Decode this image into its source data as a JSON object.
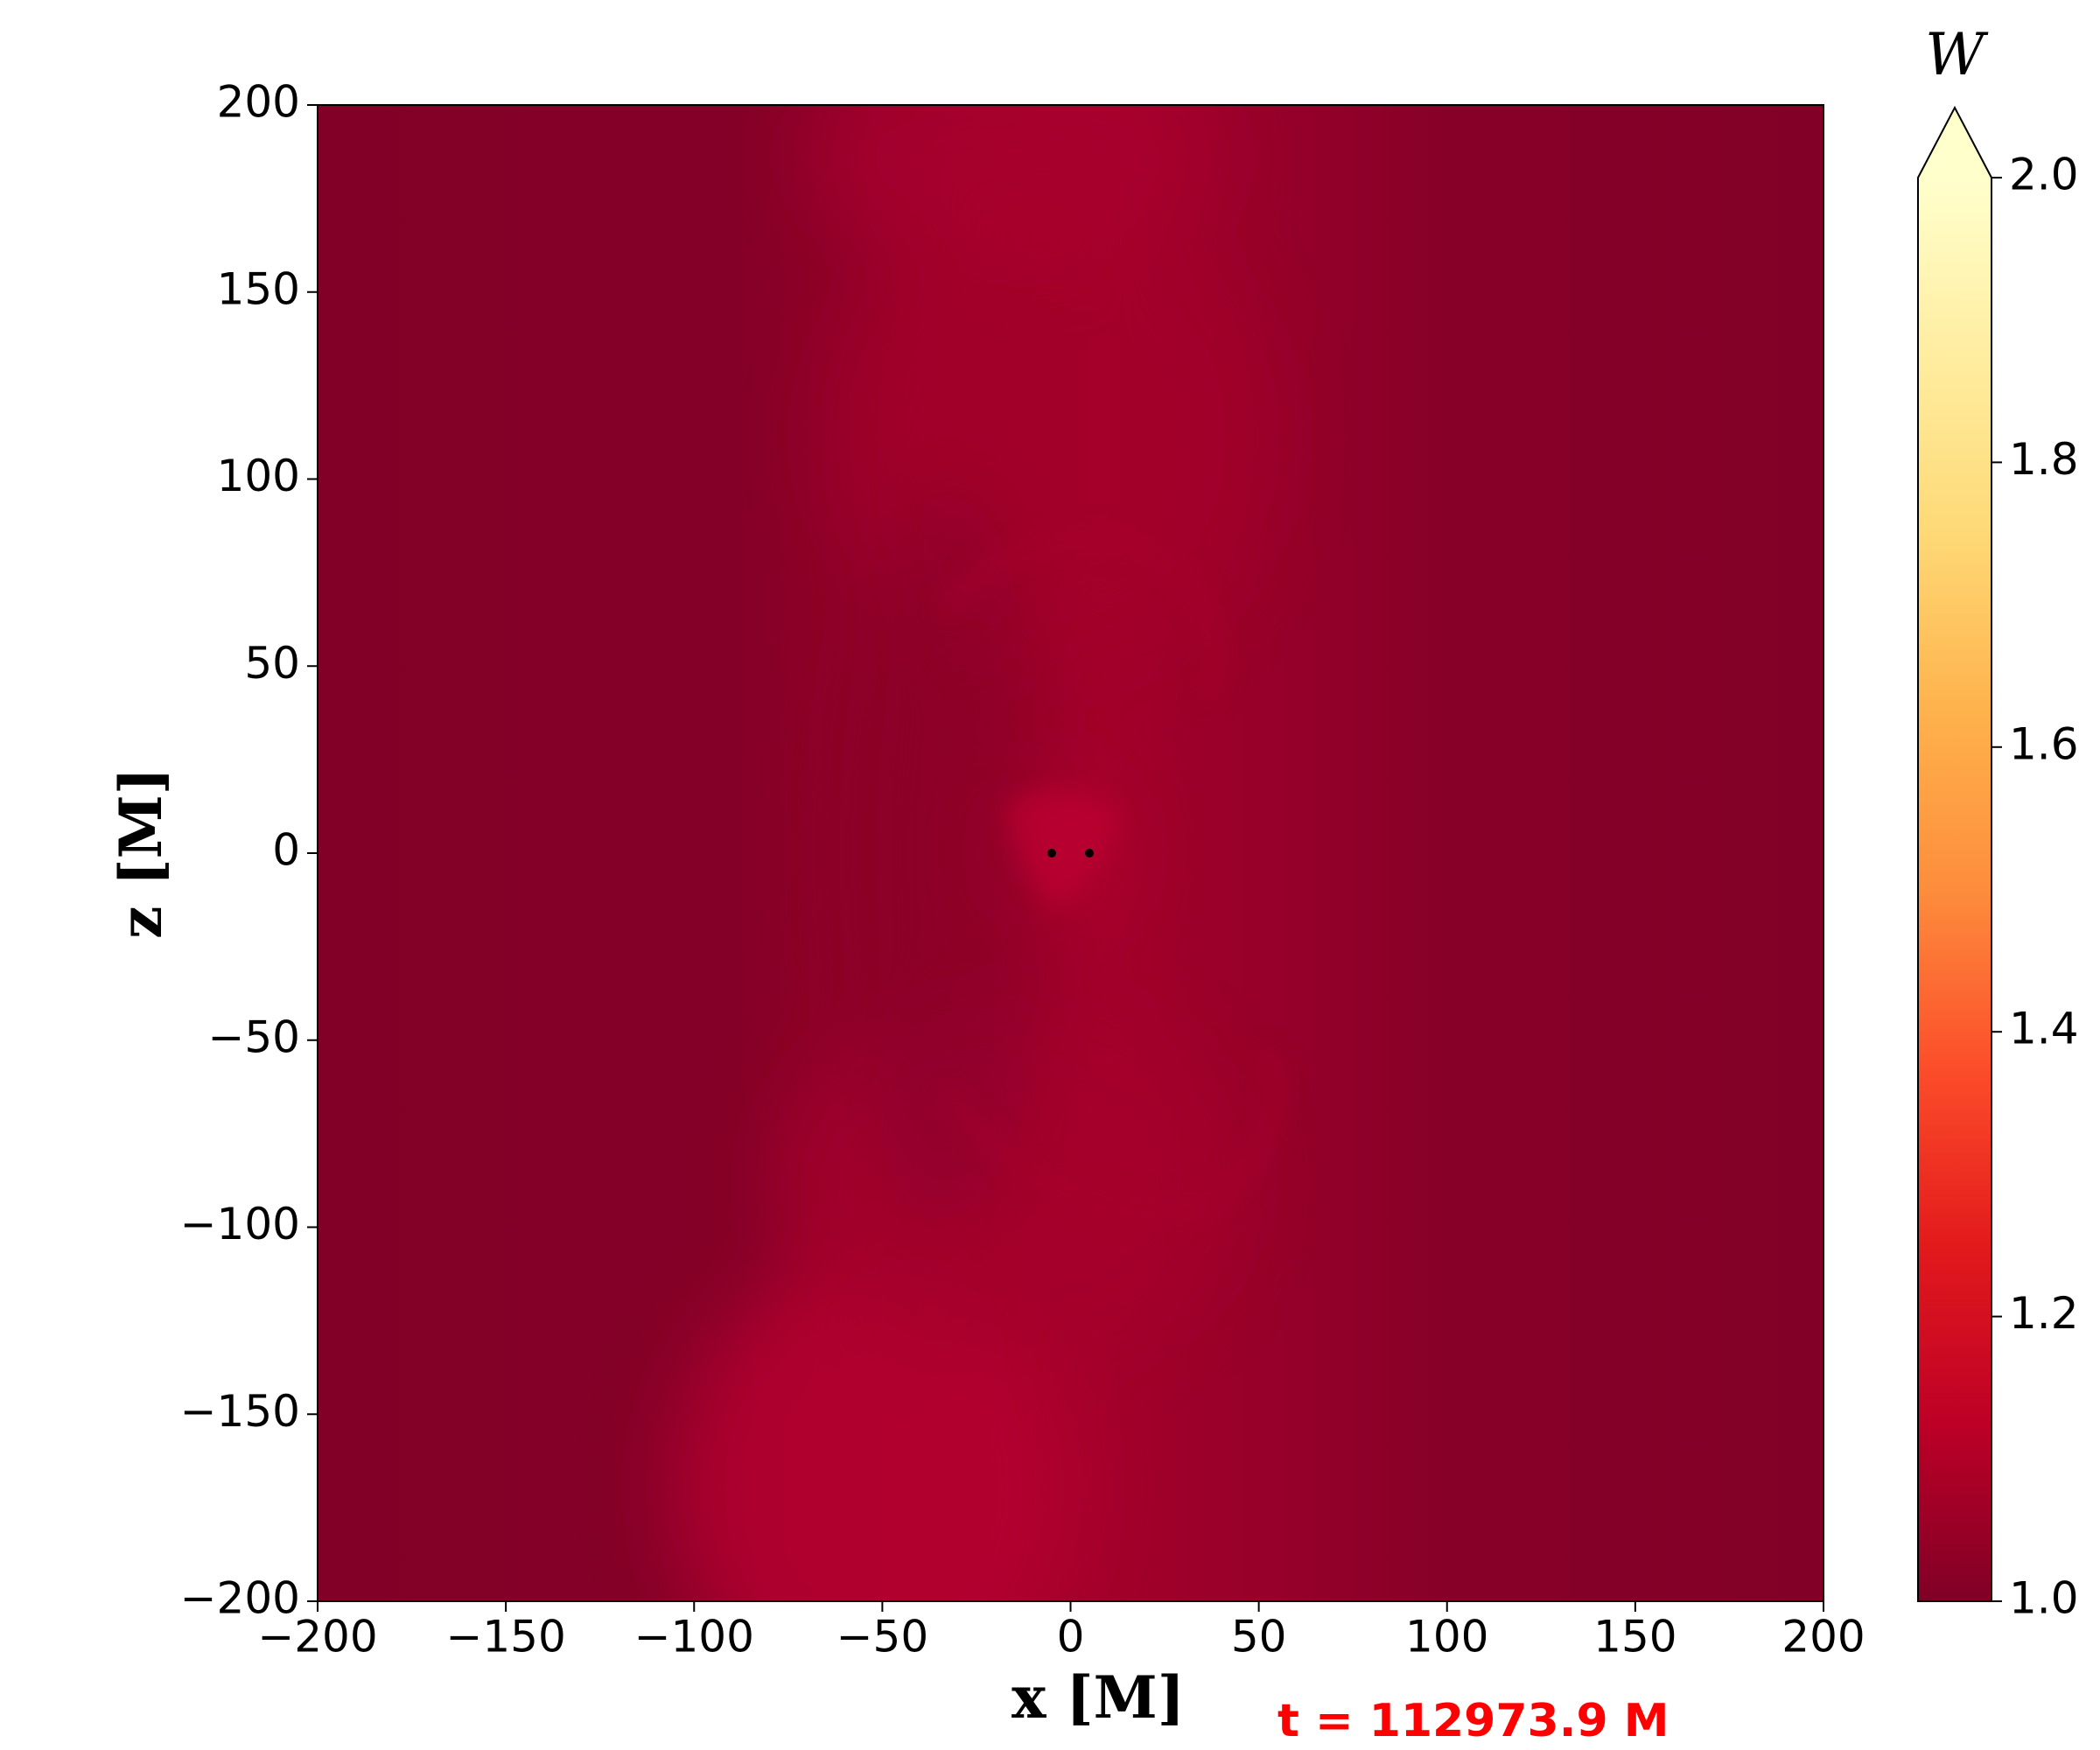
{
  "chart_data": {
    "type": "heatmap",
    "xlabel": "x [M]",
    "ylabel": "z [M]",
    "annotation": "t = 112973.9 M",
    "xlim": [
      -200,
      200
    ],
    "ylim": [
      -200,
      200
    ],
    "xticks": [
      {
        "value": -200,
        "label": "−200"
      },
      {
        "value": -150,
        "label": "−150"
      },
      {
        "value": -100,
        "label": "−100"
      },
      {
        "value": -50,
        "label": "−50"
      },
      0,
      50,
      100,
      150,
      200
    ],
    "yticks": [
      {
        "value": -200,
        "label": "−200"
      },
      {
        "value": -150,
        "label": "−150"
      },
      {
        "value": -100,
        "label": "−100"
      },
      {
        "value": -50,
        "label": "−50"
      },
      0,
      50,
      100,
      150,
      200
    ],
    "points": {
      "x": [
        -5,
        5
      ],
      "y": [
        0,
        0
      ]
    },
    "colorbar": {
      "label": "W",
      "lim": [
        1,
        2
      ],
      "extend": "max",
      "colors": [
        "#800026",
        "#bd0026",
        "#e31a1c",
        "#fc4e2a",
        "#fd8d3c",
        "#feb24c",
        "#fed976",
        "#ffeda0",
        "#ffffcc"
      ],
      "ticks": [
        {
          "value": 1,
          "label": "1.0"
        },
        {
          "value": 1.2,
          "label": "1.2"
        },
        {
          "value": 1.4,
          "label": "1.4"
        },
        {
          "value": 1.6,
          "label": "1.6"
        },
        {
          "value": 1.8,
          "label": "1.8"
        },
        {
          "value": 2,
          "label": "2.0"
        }
      ]
    }
  }
}
